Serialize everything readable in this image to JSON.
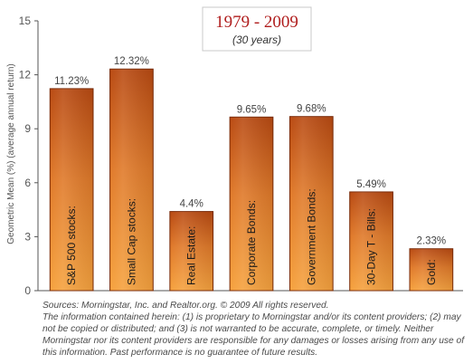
{
  "title_box": {
    "title": "1979 - 2009",
    "subtitle": "(30 years)"
  },
  "chart_data": {
    "type": "bar",
    "title": "1979 - 2009",
    "subtitle": "(30 years)",
    "ylabel": "Geometric Mean (%) (average annual return)",
    "xlabel": "",
    "ylim": [
      0,
      15
    ],
    "yticks": [
      0,
      3,
      6,
      9,
      12,
      15
    ],
    "grid": false,
    "categories": [
      "S&P 500 stocks:",
      "Small Cap stocks:",
      "Real Estate:",
      "Corporate Bonds:",
      "Government Bonds:",
      "30-Day T - Bills:",
      "Gold:"
    ],
    "values": [
      11.23,
      12.32,
      4.4,
      9.65,
      9.68,
      5.49,
      2.33
    ],
    "data_labels": [
      "11.23%",
      "12.32%",
      "4.4%",
      "9.65%",
      "9.68%",
      "5.49%",
      "2.33%"
    ],
    "colors": {
      "bar_top": "#b94a12",
      "bar_bottom": "#f6a23e",
      "bar_stroke": "#7a2a08",
      "title_color": "#b01e1e",
      "axis_color": "#555555"
    }
  },
  "footnote": {
    "sources": "Sources: Morningstar, Inc. and Realtor.org. © 2009 All rights reserved.",
    "disclaimer": "The information contained herein: (1) is proprietary to Morningstar and/or its content providers; (2) may not be copied or distributed; and (3) is not warranted to be accurate, complete, or timely. Neither Morningstar nor its content providers are responsible for any damages or losses arising from any use of this information. Past performance is no guarantee of future results."
  }
}
